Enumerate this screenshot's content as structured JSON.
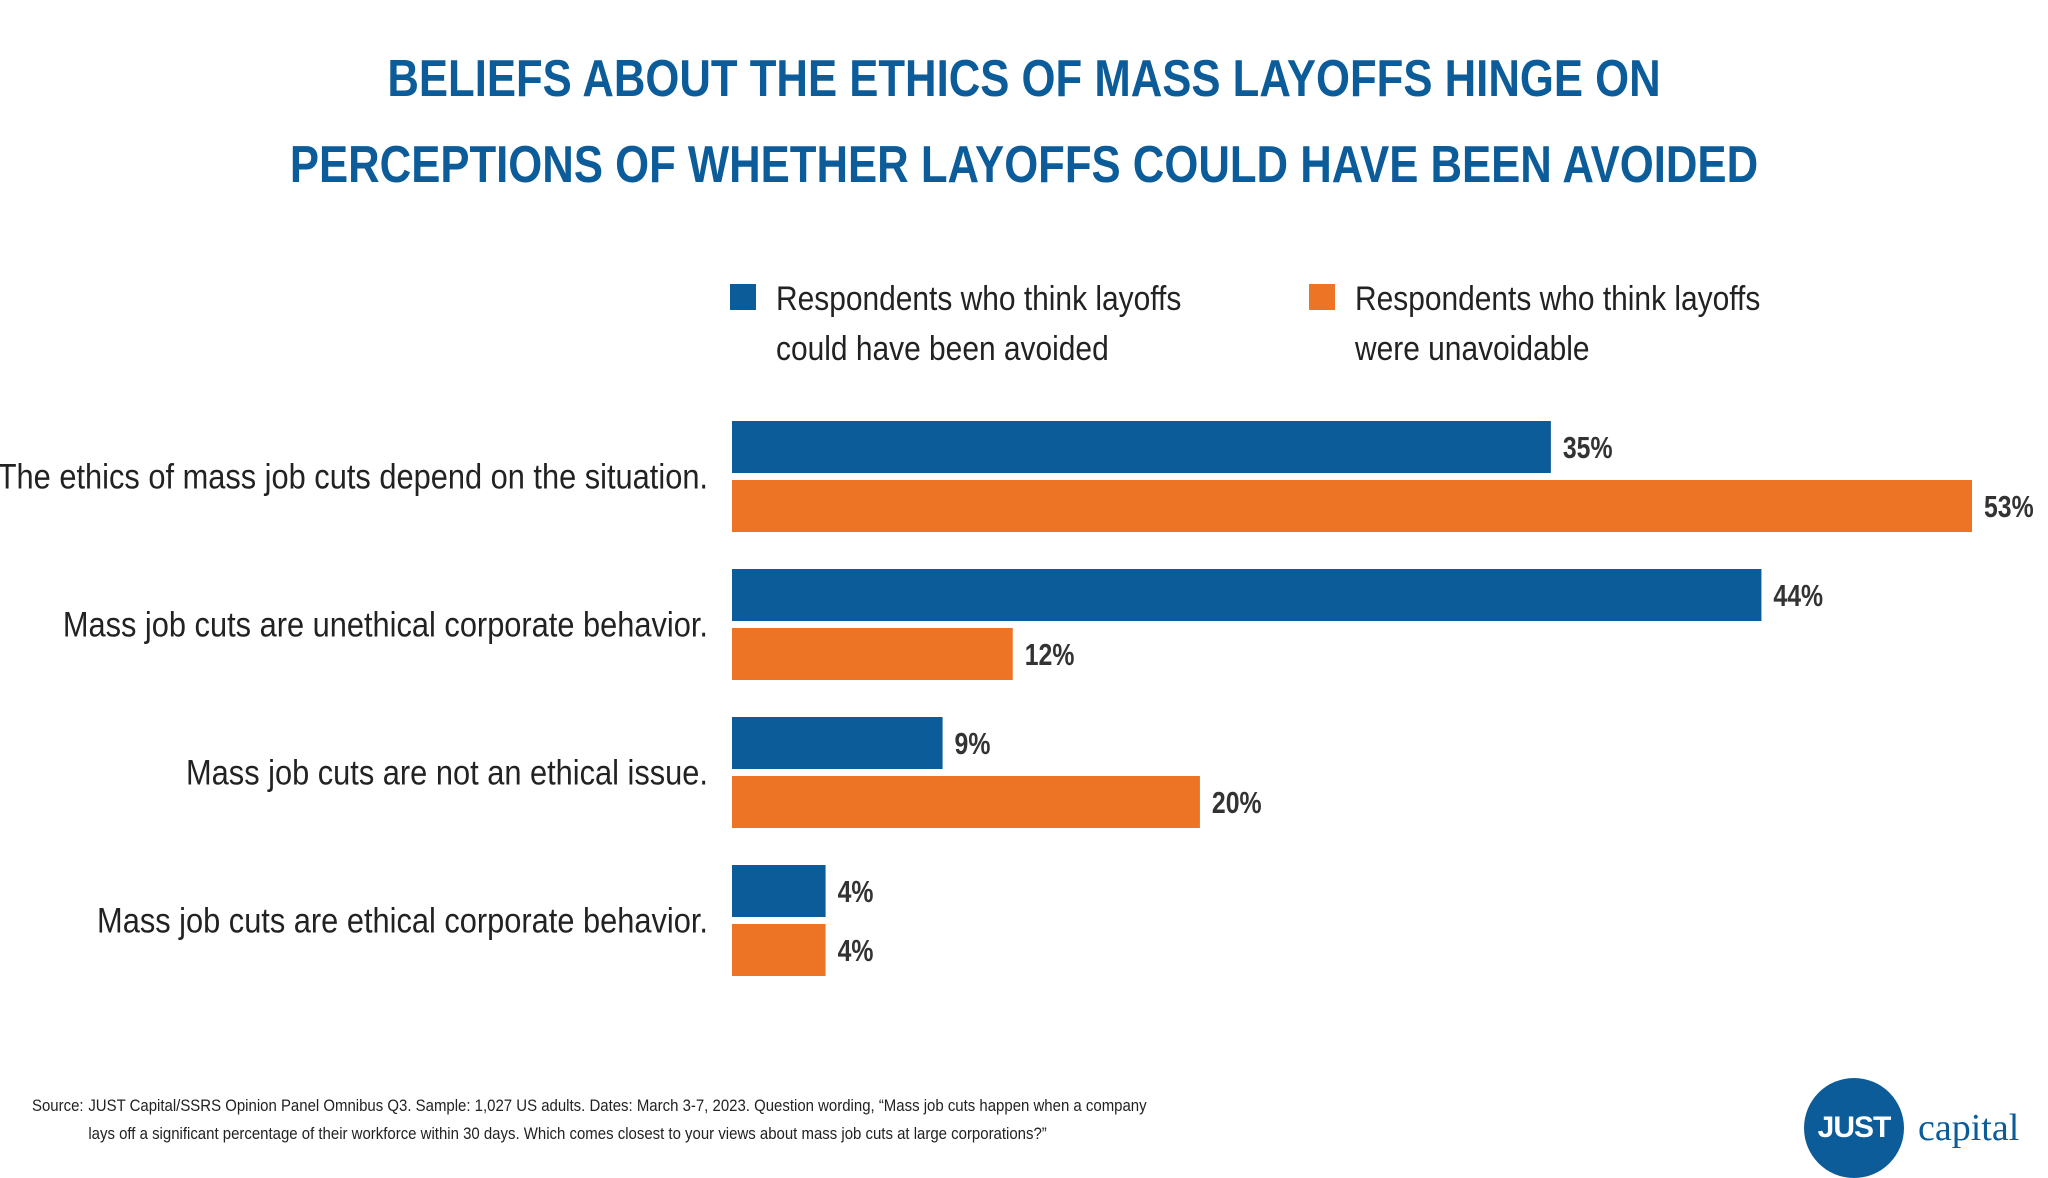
{
  "title": {
    "line1": "BELIEFS ABOUT THE ETHICS OF MASS LAYOFFS HINGE ON",
    "line2": "PERCEPTIONS OF WHETHER LAYOFFS COULD HAVE BEEN AVOIDED"
  },
  "colors": {
    "avoidable": "#0b5c99",
    "unavoidable": "#ed7424",
    "title": "#0b5c99"
  },
  "legend": [
    {
      "label": "Respondents who think layoffs\ncould have been avoided",
      "color": "#0b5c99"
    },
    {
      "label": "Respondents who think layoffs\nwere unavoidable",
      "color": "#ed7424"
    }
  ],
  "chart_data": {
    "type": "bar",
    "orientation": "horizontal",
    "categories": [
      "The ethics of mass job cuts depend on the situation.",
      "Mass job cuts are unethical corporate behavior.",
      "Mass job cuts are not an ethical issue.",
      "Mass job cuts are ethical corporate behavior."
    ],
    "series": [
      {
        "name": "Respondents who think layoffs could have been avoided",
        "values": [
          35,
          44,
          9,
          4
        ],
        "labels": [
          "35%",
          "44%",
          "9%",
          "4%"
        ],
        "color": "#0b5c99"
      },
      {
        "name": "Respondents who think layoffs were unavoidable",
        "values": [
          53,
          12,
          20,
          4
        ],
        "labels": [
          "53%",
          "12%",
          "20%",
          "4%"
        ],
        "color": "#ed7424"
      }
    ],
    "unit": "%",
    "xlim": [
      0,
      53
    ],
    "grid": false,
    "legend_position": "top"
  },
  "source": {
    "key": "Source:",
    "line1": "JUST Capital/SSRS Opinion Panel Omnibus Q3. Sample: 1,027 US adults. Dates: March 3-7, 2023. Question wording, “Mass job cuts happen when a company",
    "line2": "lays off a significant percentage of their workforce within 30 days. Which comes closest to your views about mass job cuts at large corporations?”"
  },
  "logo": {
    "circle_text": "JUST",
    "word": "capital"
  }
}
